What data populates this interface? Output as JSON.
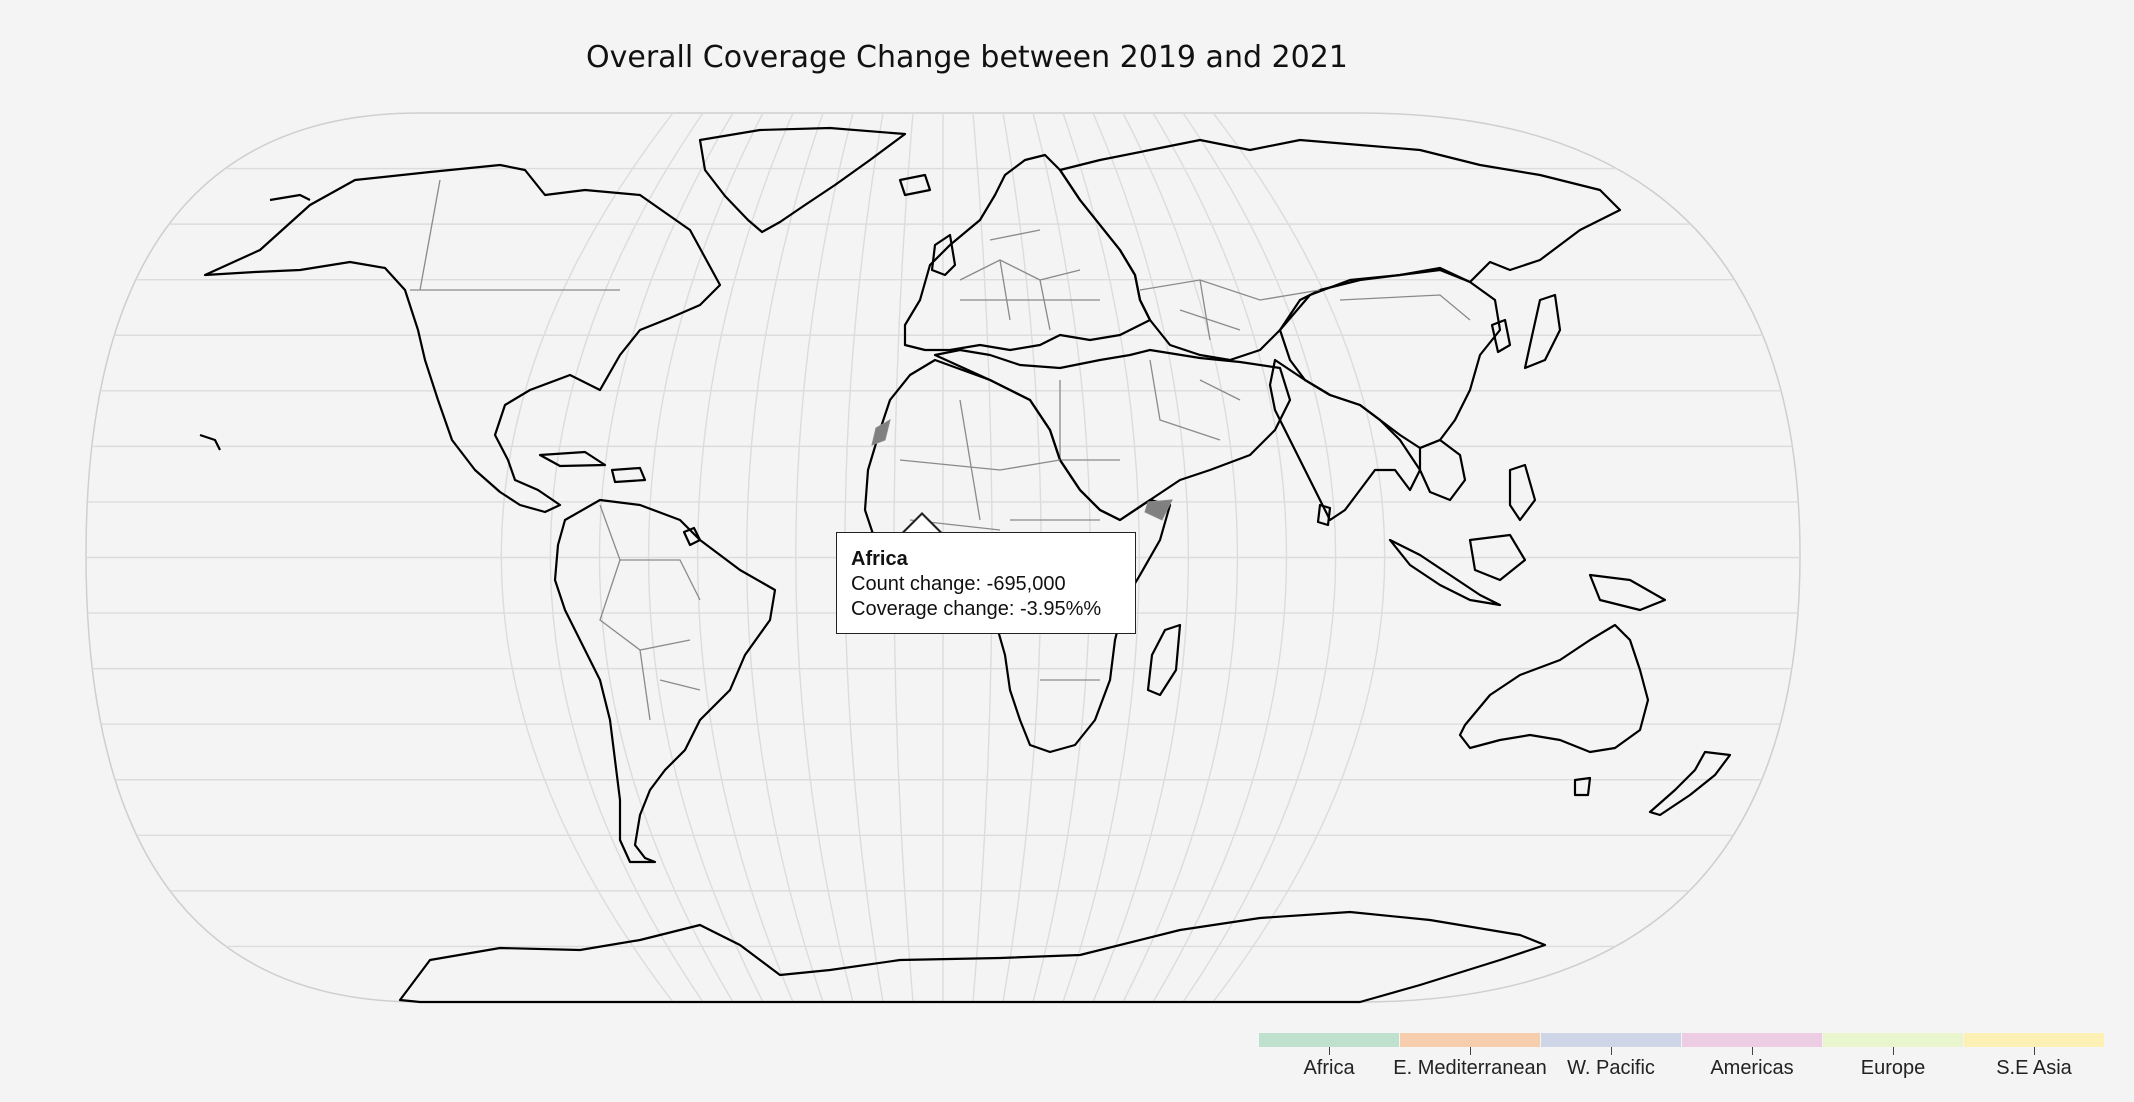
{
  "title": "Overall Coverage Change between 2019 and 2021",
  "colors": {
    "background": "#f4f4f4",
    "no_data": "#808080",
    "graticule": "#dcdcdc",
    "border": "#8a8a8a"
  },
  "regions": [
    {
      "key": "africa",
      "label": "Africa",
      "color": "#bfe0cc"
    },
    {
      "key": "emed",
      "label": "E. Mediterranean",
      "color": "#f6ceae"
    },
    {
      "key": "wpac",
      "label": "W. Pacific",
      "color": "#ced5e6"
    },
    {
      "key": "americas",
      "label": "Americas",
      "color": "#edcde3"
    },
    {
      "key": "europe",
      "label": "Europe",
      "color": "#e9f5cd"
    },
    {
      "key": "seasia",
      "label": "S.E Asia",
      "color": "#fdf0b5"
    }
  ],
  "tooltip": {
    "region": "Africa",
    "count_change": "Count change: -695,000",
    "coverage_change": "Coverage change: -3.95%%"
  }
}
